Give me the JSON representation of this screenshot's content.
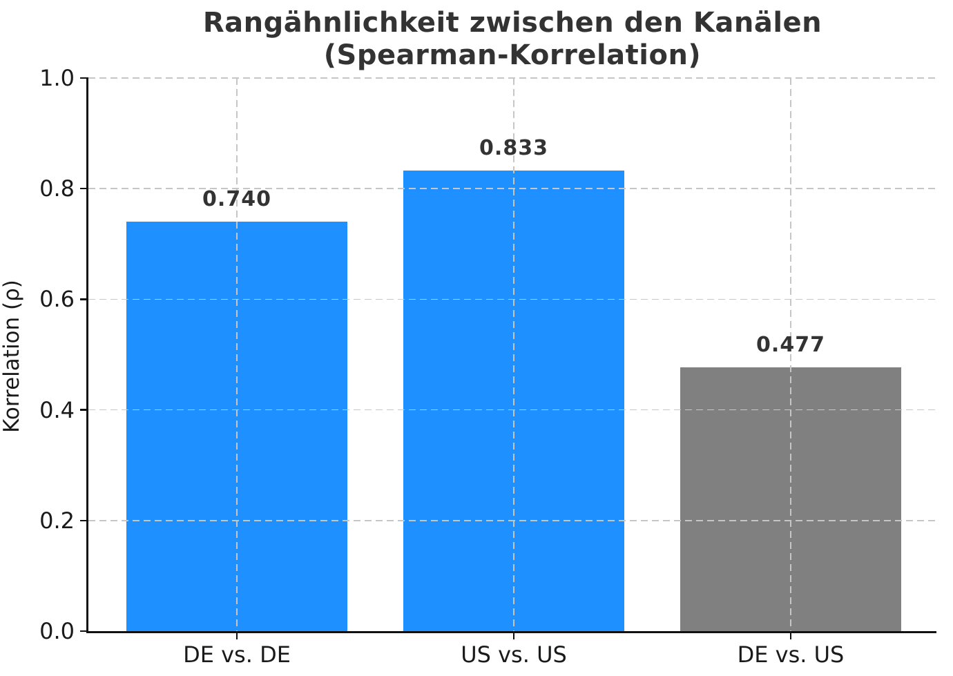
{
  "chart_data": {
    "type": "bar",
    "title": "Rangähnlichkeit zwischen den Kanälen\n(Spearman-Korrelation)",
    "xlabel": "",
    "ylabel": "Korrelation (ρ)",
    "categories": [
      "DE vs. DE",
      "US vs. US",
      "DE vs. US"
    ],
    "values": [
      0.74,
      0.833,
      0.477
    ],
    "value_labels": [
      "0.740",
      "0.833",
      "0.477"
    ],
    "bar_colors": [
      "#1E90FF",
      "#1E90FF",
      "#808080"
    ],
    "yticks": [
      0.0,
      0.2,
      0.4,
      0.6,
      0.8,
      1.0
    ],
    "ytick_labels": [
      "0.0",
      "0.2",
      "0.4",
      "0.6",
      "0.8",
      "1.0"
    ],
    "ylim": [
      0.0,
      1.0
    ],
    "grid": true,
    "grid_style": "dashed",
    "grid_over_bars": true,
    "legend_position": "none",
    "colors": {
      "accent_blue": "#1E90FF",
      "neutral_gray": "#808080",
      "title_text": "#333333",
      "tick_text": "#1a1a1a",
      "grid": "#c6c6c6",
      "axis": "#111111",
      "background": "#ffffff"
    }
  }
}
